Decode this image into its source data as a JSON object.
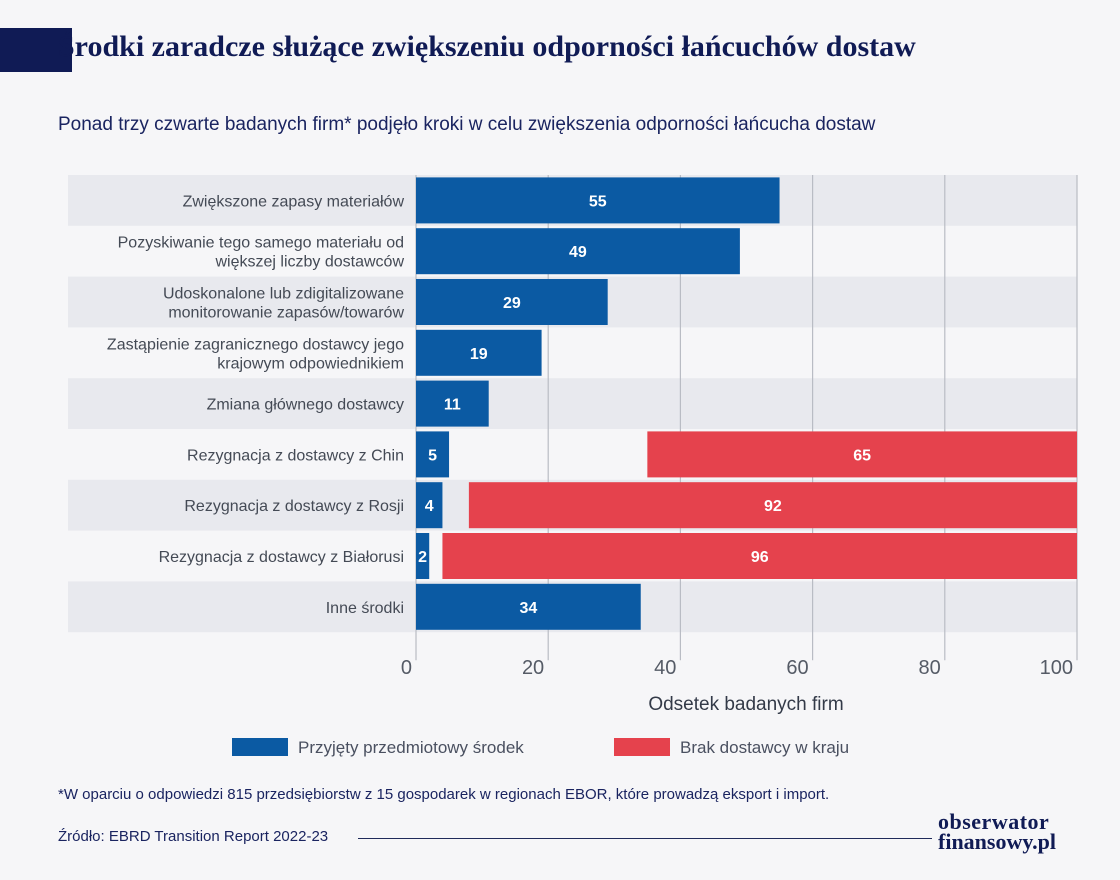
{
  "header": {
    "title": "Środki zaradcze służące zwiększeniu odporności łańcuchów dostaw",
    "subtitle": "Ponad trzy czwarte badanych firm* podjęło kroki w celu zwiększenia odporności łańcucha dostaw"
  },
  "chart_data": {
    "type": "bar",
    "orientation": "horizontal",
    "categories": [
      [
        "Zwiększone zapasy materiałów"
      ],
      [
        "Pozyskiwanie tego samego materiału od",
        "większej liczby dostawców"
      ],
      [
        "Udoskonalone lub zdigitalizowane",
        "monitorowanie zapasów/towarów"
      ],
      [
        "Zastąpienie zagranicznego dostawcy jego",
        "krajowym odpowiednikiem"
      ],
      [
        "Zmiana głównego dostawcy"
      ],
      [
        "Rezygnacja z dostawcy z Chin"
      ],
      [
        "Rezygnacja z dostawcy z Rosji"
      ],
      [
        "Rezygnacja z dostawcy z Białorusi"
      ],
      [
        "Inne środki"
      ]
    ],
    "series": [
      {
        "name": "Przyjęty przedmiotowy środek",
        "color": "#0b5aa3",
        "values": [
          55,
          49,
          29,
          19,
          11,
          5,
          4,
          2,
          34
        ]
      },
      {
        "name": "Brak dostawcy w kraju",
        "color": "#e5424d",
        "values": [
          null,
          null,
          null,
          null,
          null,
          65,
          92,
          96,
          null
        ]
      }
    ],
    "xlabel": "Odsetek badanych firm",
    "xlim": [
      0,
      100
    ],
    "xticks": [
      0,
      20,
      40,
      60,
      80,
      100
    ],
    "grid": true,
    "legend_position": "bottom"
  },
  "footnote": "*W oparciu o odpowiedzi 815 przedsiębiorstw z 15 gospodarek w regionach EBOR, które prowadzą eksport i import.",
  "source": "Źródło: EBRD Transition Report 2022-23",
  "logo": {
    "line1": "obserwator",
    "line2": "finansowy.pl"
  }
}
